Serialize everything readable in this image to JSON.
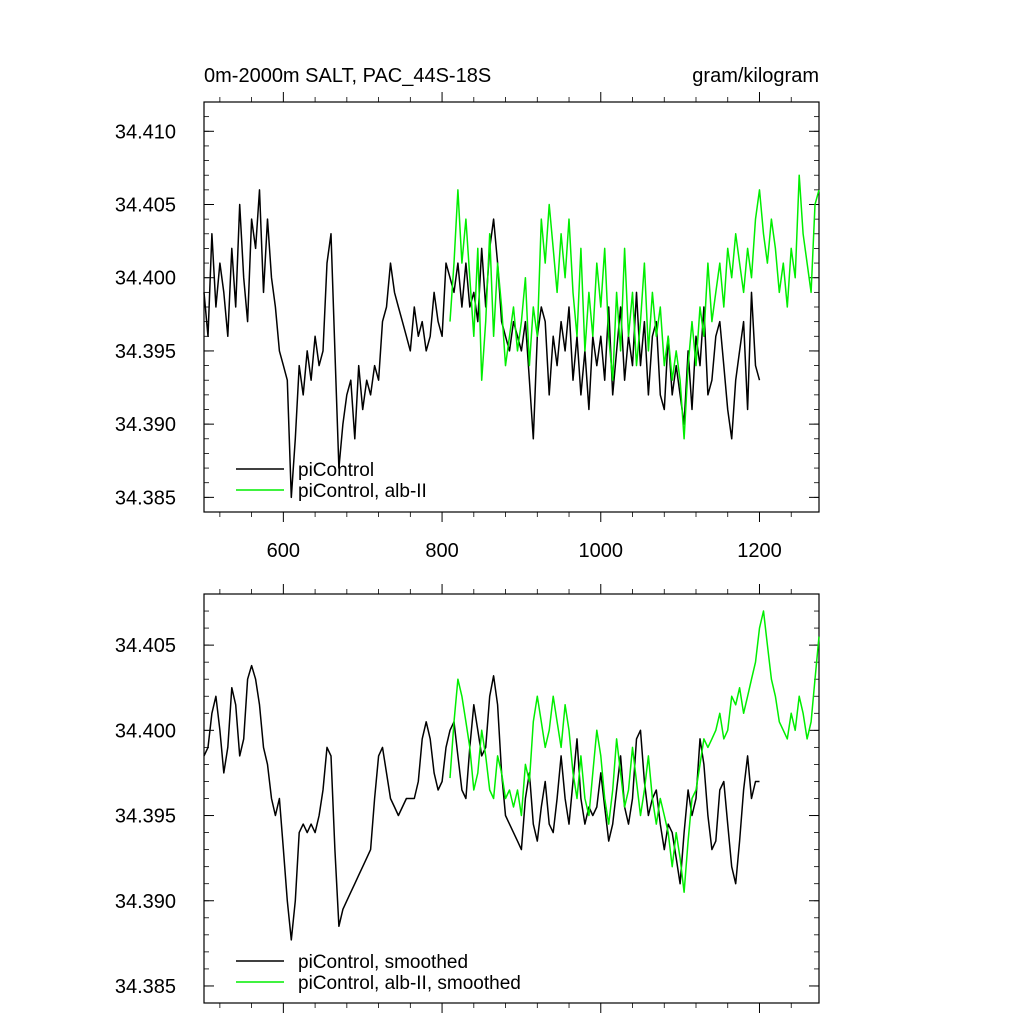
{
  "chart_data": [
    {
      "type": "line",
      "title_left": "0m-2000m SALT, PAC_44S-18S",
      "title_right": "gram/kilogram",
      "xlim": [
        500,
        1275
      ],
      "ylim": [
        34.384,
        34.412
      ],
      "xticks": [
        600,
        800,
        1000,
        1200
      ],
      "xtick_labels": [
        "600",
        "800",
        "1000",
        "1200"
      ],
      "yticks": [
        34.385,
        34.39,
        34.395,
        34.4,
        34.405,
        34.41
      ],
      "ytick_labels": [
        "34.385",
        "34.390",
        "34.395",
        "34.400",
        "34.405",
        "34.410"
      ],
      "legend": [
        "piControl",
        "piControl, alb-II"
      ],
      "legend_position": "bottom-left",
      "series": [
        {
          "name": "piControl",
          "color": "#000000",
          "x": [
            500,
            505,
            510,
            515,
            520,
            525,
            530,
            535,
            540,
            545,
            550,
            555,
            560,
            565,
            570,
            575,
            580,
            585,
            590,
            595,
            600,
            605,
            610,
            615,
            620,
            625,
            630,
            635,
            640,
            645,
            650,
            655,
            660,
            665,
            670,
            675,
            680,
            685,
            690,
            695,
            700,
            705,
            710,
            715,
            720,
            725,
            730,
            735,
            740,
            745,
            750,
            755,
            760,
            765,
            770,
            775,
            780,
            785,
            790,
            795,
            800,
            805,
            810,
            815,
            820,
            825,
            830,
            835,
            840,
            845,
            850,
            855,
            860,
            865,
            870,
            875,
            880,
            885,
            890,
            895,
            900,
            905,
            910,
            915,
            920,
            925,
            930,
            935,
            940,
            945,
            950,
            955,
            960,
            965,
            970,
            975,
            980,
            985,
            990,
            995,
            1000,
            1005,
            1010,
            1015,
            1020,
            1025,
            1030,
            1035,
            1040,
            1045,
            1050,
            1055,
            1060,
            1065,
            1070,
            1075,
            1080,
            1085,
            1090,
            1095,
            1100,
            1105,
            1110,
            1115,
            1120,
            1125,
            1130,
            1135,
            1140,
            1145,
            1150,
            1155,
            1160,
            1165,
            1170,
            1175,
            1180,
            1185,
            1190,
            1195,
            1200
          ],
          "y": [
            34.399,
            34.396,
            34.403,
            34.398,
            34.401,
            34.399,
            34.396,
            34.402,
            34.398,
            34.405,
            34.4,
            34.397,
            34.404,
            34.402,
            34.406,
            34.399,
            34.404,
            34.4,
            34.398,
            34.395,
            34.394,
            34.393,
            34.385,
            34.389,
            34.394,
            34.392,
            34.395,
            34.393,
            34.396,
            34.394,
            34.395,
            34.401,
            34.403,
            34.395,
            34.387,
            34.39,
            34.392,
            34.393,
            34.389,
            34.394,
            34.391,
            34.393,
            34.392,
            34.394,
            34.393,
            34.397,
            34.398,
            34.401,
            34.399,
            34.398,
            34.397,
            34.396,
            34.395,
            34.398,
            34.396,
            34.397,
            34.395,
            34.396,
            34.399,
            34.397,
            34.396,
            34.401,
            34.4,
            34.399,
            34.401,
            34.398,
            34.401,
            34.398,
            34.399,
            34.397,
            34.402,
            34.398,
            34.402,
            34.404,
            34.401,
            34.397,
            34.396,
            34.395,
            34.397,
            34.396,
            34.395,
            34.397,
            34.393,
            34.389,
            34.396,
            34.398,
            34.397,
            34.392,
            34.396,
            34.394,
            34.397,
            34.395,
            34.398,
            34.393,
            34.396,
            34.392,
            34.395,
            34.391,
            34.396,
            34.394,
            34.396,
            34.393,
            34.398,
            34.392,
            34.395,
            34.398,
            34.393,
            34.396,
            34.394,
            34.399,
            34.394,
            34.397,
            34.392,
            34.396,
            34.397,
            34.392,
            34.391,
            34.396,
            34.392,
            34.394,
            34.392,
            34.39,
            34.395,
            34.391,
            34.396,
            34.394,
            34.398,
            34.392,
            34.393,
            34.396,
            34.397,
            34.394,
            34.391,
            34.389,
            34.393,
            34.395,
            34.397,
            34.391,
            34.399,
            34.394,
            34.393
          ]
        },
        {
          "name": "piControl, alb-II",
          "color": "#00ee00",
          "x": [
            810,
            815,
            820,
            825,
            830,
            835,
            840,
            845,
            850,
            855,
            860,
            865,
            870,
            875,
            880,
            885,
            890,
            895,
            900,
            905,
            910,
            915,
            920,
            925,
            930,
            935,
            940,
            945,
            950,
            955,
            960,
            965,
            970,
            975,
            980,
            985,
            990,
            995,
            1000,
            1005,
            1010,
            1015,
            1020,
            1025,
            1030,
            1035,
            1040,
            1045,
            1050,
            1055,
            1060,
            1065,
            1070,
            1075,
            1080,
            1085,
            1090,
            1095,
            1100,
            1105,
            1110,
            1115,
            1120,
            1125,
            1130,
            1135,
            1140,
            1145,
            1150,
            1155,
            1160,
            1165,
            1170,
            1175,
            1180,
            1185,
            1190,
            1195,
            1200,
            1205,
            1210,
            1215,
            1220,
            1225,
            1230,
            1235,
            1240,
            1245,
            1250,
            1255,
            1260,
            1265,
            1270,
            1275
          ],
          "y": [
            34.397,
            34.401,
            34.406,
            34.401,
            34.404,
            34.4,
            34.396,
            34.402,
            34.393,
            34.397,
            34.403,
            34.396,
            34.401,
            34.398,
            34.394,
            34.396,
            34.398,
            34.395,
            34.397,
            34.4,
            34.394,
            34.398,
            34.396,
            34.404,
            34.401,
            34.405,
            34.402,
            34.399,
            34.403,
            34.4,
            34.404,
            34.399,
            34.396,
            34.402,
            34.395,
            34.399,
            34.396,
            34.401,
            34.398,
            34.402,
            34.396,
            34.393,
            34.399,
            34.395,
            34.402,
            34.396,
            34.399,
            34.394,
            34.397,
            34.401,
            34.395,
            34.399,
            34.396,
            34.398,
            34.394,
            34.396,
            34.393,
            34.395,
            34.393,
            34.389,
            34.394,
            34.397,
            34.394,
            34.398,
            34.396,
            34.401,
            34.397,
            34.399,
            34.401,
            34.398,
            34.402,
            34.4,
            34.403,
            34.401,
            34.399,
            34.402,
            34.4,
            34.404,
            34.406,
            34.403,
            34.401,
            34.404,
            34.402,
            34.399,
            34.401,
            34.398,
            34.402,
            34.4,
            34.407,
            34.403,
            34.401,
            34.399,
            34.405,
            34.406
          ]
        }
      ]
    },
    {
      "type": "line",
      "xlim": [
        500,
        1275
      ],
      "ylim": [
        34.384,
        34.408
      ],
      "xticks": [
        600,
        800,
        1000,
        1200
      ],
      "yticks": [
        34.385,
        34.39,
        34.395,
        34.4,
        34.405
      ],
      "ytick_labels": [
        "34.385",
        "34.390",
        "34.395",
        "34.400",
        "34.405"
      ],
      "legend": [
        "piControl, smoothed",
        "piControl, alb-II, smoothed"
      ],
      "legend_position": "bottom-left",
      "series": [
        {
          "name": "piControl, smoothed",
          "color": "#000000",
          "x": [
            500,
            505,
            510,
            515,
            520,
            525,
            530,
            535,
            540,
            545,
            550,
            555,
            560,
            565,
            570,
            575,
            580,
            585,
            590,
            595,
            600,
            605,
            610,
            615,
            620,
            625,
            630,
            635,
            640,
            645,
            650,
            655,
            660,
            665,
            670,
            675,
            680,
            685,
            690,
            695,
            700,
            705,
            710,
            715,
            720,
            725,
            730,
            735,
            740,
            745,
            750,
            755,
            760,
            765,
            770,
            775,
            780,
            785,
            790,
            795,
            800,
            805,
            810,
            815,
            820,
            825,
            830,
            835,
            840,
            845,
            850,
            855,
            860,
            865,
            870,
            875,
            880,
            885,
            890,
            895,
            900,
            905,
            910,
            915,
            920,
            925,
            930,
            935,
            940,
            945,
            950,
            955,
            960,
            965,
            970,
            975,
            980,
            985,
            990,
            995,
            1000,
            1005,
            1010,
            1015,
            1020,
            1025,
            1030,
            1035,
            1040,
            1045,
            1050,
            1055,
            1060,
            1065,
            1070,
            1075,
            1080,
            1085,
            1090,
            1095,
            1100,
            1105,
            1110,
            1115,
            1120,
            1125,
            1130,
            1135,
            1140,
            1145,
            1150,
            1155,
            1160,
            1165,
            1170,
            1175,
            1180,
            1185,
            1190,
            1195,
            1200
          ],
          "y": [
            34.3985,
            34.399,
            34.401,
            34.402,
            34.4,
            34.3975,
            34.399,
            34.4025,
            34.4015,
            34.3985,
            34.3995,
            34.403,
            34.4038,
            34.403,
            34.4015,
            34.399,
            34.398,
            34.396,
            34.395,
            34.396,
            34.393,
            34.39,
            34.3877,
            34.39,
            34.394,
            34.3945,
            34.394,
            34.3945,
            34.394,
            34.395,
            34.3965,
            34.399,
            34.3985,
            34.393,
            34.3885,
            34.3895,
            34.39,
            34.3905,
            34.391,
            34.3915,
            34.392,
            34.3925,
            34.393,
            34.396,
            34.3985,
            34.399,
            34.3975,
            34.396,
            34.3955,
            34.395,
            34.3955,
            34.396,
            34.396,
            34.396,
            34.397,
            34.3995,
            34.4005,
            34.3995,
            34.3975,
            34.3965,
            34.397,
            34.399,
            34.4,
            34.4005,
            34.3985,
            34.3965,
            34.396,
            34.399,
            34.4015,
            34.4,
            34.3985,
            34.399,
            34.402,
            34.4032,
            34.4015,
            34.3975,
            34.395,
            34.3945,
            34.394,
            34.3935,
            34.393,
            34.396,
            34.3975,
            34.3945,
            34.3935,
            34.3955,
            34.397,
            34.3945,
            34.394,
            34.396,
            34.3985,
            34.396,
            34.3945,
            34.397,
            34.3995,
            34.396,
            34.3945,
            34.3955,
            34.395,
            34.3955,
            34.3975,
            34.3955,
            34.3935,
            34.3945,
            34.3965,
            34.3985,
            34.3955,
            34.3945,
            34.396,
            34.3995,
            34.4,
            34.397,
            34.395,
            34.396,
            34.3965,
            34.3945,
            34.393,
            34.3945,
            34.394,
            34.3925,
            34.391,
            34.394,
            34.3965,
            34.395,
            34.396,
            34.3995,
            34.398,
            34.395,
            34.393,
            34.3935,
            34.3965,
            34.397,
            34.3945,
            34.392,
            34.391,
            34.3935,
            34.3965,
            34.3985,
            34.396,
            34.397,
            34.397
          ]
        },
        {
          "name": "piControl, alb-II, smoothed",
          "color": "#00ee00",
          "x": [
            810,
            815,
            820,
            825,
            830,
            835,
            840,
            845,
            850,
            855,
            860,
            865,
            870,
            875,
            880,
            885,
            890,
            895,
            900,
            905,
            910,
            915,
            920,
            925,
            930,
            935,
            940,
            945,
            950,
            955,
            960,
            965,
            970,
            975,
            980,
            985,
            990,
            995,
            1000,
            1005,
            1010,
            1015,
            1020,
            1025,
            1030,
            1035,
            1040,
            1045,
            1050,
            1055,
            1060,
            1065,
            1070,
            1075,
            1080,
            1085,
            1090,
            1095,
            1100,
            1105,
            1110,
            1115,
            1120,
            1125,
            1130,
            1135,
            1140,
            1145,
            1150,
            1155,
            1160,
            1165,
            1170,
            1175,
            1180,
            1185,
            1190,
            1195,
            1200,
            1205,
            1210,
            1215,
            1220,
            1225,
            1230,
            1235,
            1240,
            1245,
            1250,
            1255,
            1260,
            1265,
            1270,
            1275
          ],
          "y": [
            34.3972,
            34.4005,
            34.403,
            34.402,
            34.4005,
            34.399,
            34.3965,
            34.3975,
            34.4,
            34.3985,
            34.3965,
            34.396,
            34.3985,
            34.3975,
            34.396,
            34.3965,
            34.3955,
            34.3965,
            34.395,
            34.398,
            34.397,
            34.4005,
            34.402,
            34.4005,
            34.399,
            34.4,
            34.402,
            34.4005,
            34.399,
            34.4015,
            34.4,
            34.3975,
            34.396,
            34.3985,
            34.396,
            34.395,
            34.3975,
            34.4,
            34.3985,
            34.396,
            34.3945,
            34.3965,
            34.3995,
            34.3975,
            34.3955,
            34.3965,
            34.399,
            34.397,
            34.395,
            34.3965,
            34.3985,
            34.396,
            34.3945,
            34.396,
            34.395,
            34.394,
            34.392,
            34.394,
            34.3925,
            34.3905,
            34.3935,
            34.396,
            34.3965,
            34.398,
            34.3995,
            34.399,
            34.3995,
            34.4,
            34.401,
            34.3995,
            34.4,
            34.402,
            34.4015,
            34.4025,
            34.401,
            34.402,
            34.403,
            34.404,
            34.406,
            34.407,
            34.405,
            34.403,
            34.402,
            34.4005,
            34.4,
            34.3995,
            34.401,
            34.4,
            34.402,
            34.401,
            34.3995,
            34.4005,
            34.403,
            34.4055
          ]
        }
      ]
    }
  ]
}
